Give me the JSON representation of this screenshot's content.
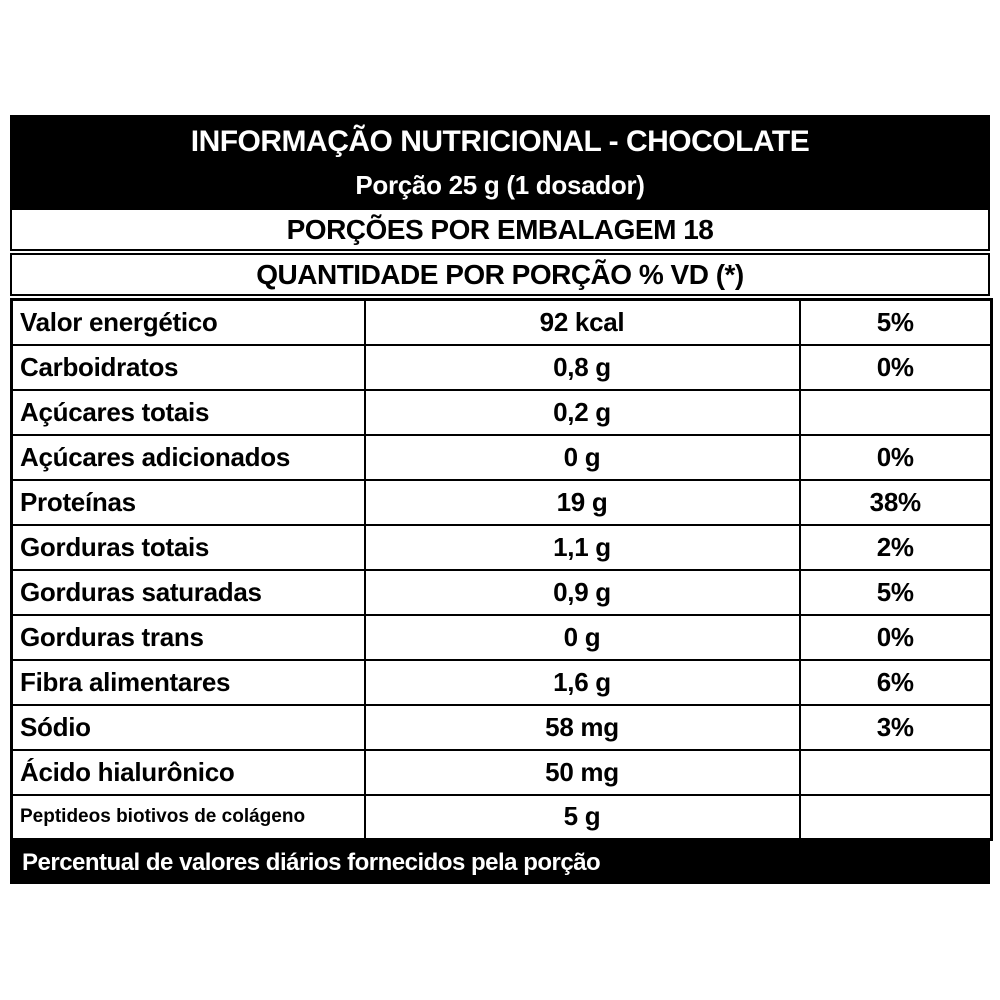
{
  "header": {
    "title": "INFORMAÇÃO NUTRICIONAL - CHOCOLATE",
    "serving": "Porção 25 g (1 dosador)",
    "servings_per_package": "PORÇÕES POR EMBALAGEM 18",
    "quantity_header": "QUANTIDADE POR PORÇÃO % VD (*)"
  },
  "rows": [
    {
      "label": "Valor energético",
      "amount": "92 kcal",
      "dv": "5%"
    },
    {
      "label": "Carboidratos",
      "amount": "0,8 g",
      "dv": "0%"
    },
    {
      "label": "Açúcares totais",
      "amount": "0,2 g",
      "dv": ""
    },
    {
      "label": "Açúcares adicionados",
      "amount": "0 g",
      "dv": "0%"
    },
    {
      "label": "Proteínas",
      "amount": "19 g",
      "dv": "38%"
    },
    {
      "label": "Gorduras totais",
      "amount": "1,1 g",
      "dv": "2%"
    },
    {
      "label": "Gorduras saturadas",
      "amount": "0,9 g",
      "dv": "5%"
    },
    {
      "label": "Gorduras trans",
      "amount": "0 g",
      "dv": "0%"
    },
    {
      "label": "Fibra alimentares",
      "amount": "1,6 g",
      "dv": "6%"
    },
    {
      "label": "Sódio",
      "amount": "58 mg",
      "dv": "3%"
    },
    {
      "label": "Ácido hialurônico",
      "amount": "50 mg",
      "dv": ""
    },
    {
      "label": "Peptideos biotivos de colágeno",
      "amount": "5 g",
      "dv": ""
    }
  ],
  "footer": {
    "note": "Percentual de valores diários fornecidos pela porção"
  },
  "colors": {
    "band_bg": "#000000",
    "band_text": "#ffffff",
    "border": "#000000",
    "text": "#000000",
    "background": "#ffffff"
  }
}
